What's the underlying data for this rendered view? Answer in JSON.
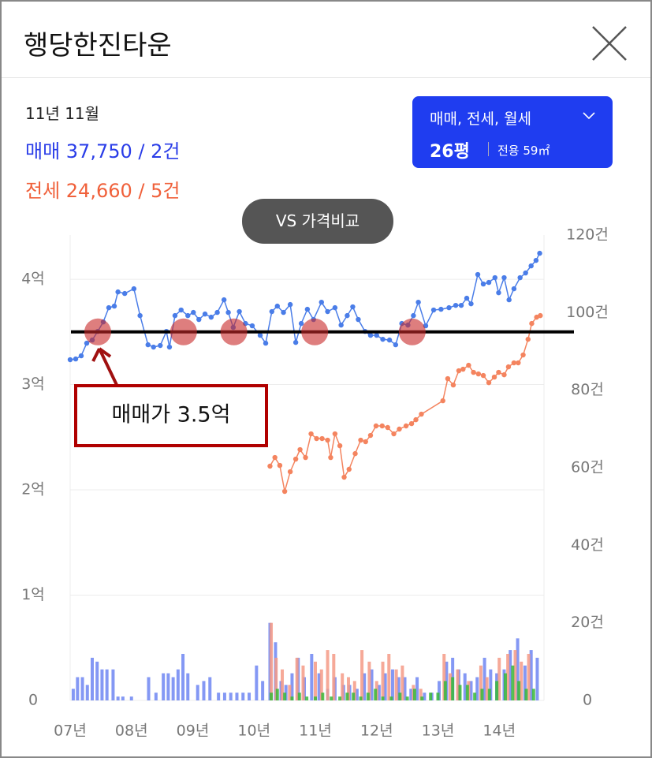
{
  "header": {
    "title": "행당한진타운"
  },
  "summary": {
    "date": "11년 11월",
    "sale": "매매 37,750 / 2건",
    "jeonse": "전세 24,660 / 5건"
  },
  "filter": {
    "types": "매매, 전세, 월세",
    "size": "26평",
    "area": "전용 59㎡"
  },
  "compare_button": "VS 가격비교",
  "chart_data": {
    "type": "combo",
    "grid": true,
    "xlim": [
      2007,
      2014.73
    ],
    "xticks": [
      {
        "value": 2007,
        "label": "07년"
      },
      {
        "value": 2008,
        "label": "08년"
      },
      {
        "value": 2009,
        "label": "09년"
      },
      {
        "value": 2010,
        "label": "10년"
      },
      {
        "value": 2011,
        "label": "11년"
      },
      {
        "value": 2012,
        "label": "12년"
      },
      {
        "value": 2013,
        "label": "13년"
      },
      {
        "value": 2014,
        "label": "14년"
      }
    ],
    "ylim": [
      0,
      44200
    ],
    "yticks": [
      0,
      {
        "value": 10000,
        "label": "1억"
      },
      {
        "value": 20000,
        "label": "2억"
      },
      {
        "value": 30000,
        "label": "3억"
      },
      {
        "value": 40000,
        "label": "4억"
      }
    ],
    "y2lim": [
      0,
      120
    ],
    "y2ticks": [
      0,
      {
        "value": 20,
        "label": "20건"
      },
      {
        "value": 40,
        "label": "40건"
      },
      {
        "value": 60,
        "label": "60건"
      },
      {
        "value": 80,
        "label": "80건"
      },
      {
        "value": 100,
        "label": "100건"
      },
      {
        "value": 120,
        "label": "120건"
      }
    ],
    "series": [
      {
        "type": "bar",
        "axis": "y2",
        "color": "#6f86f2",
        "x": [
          2007.05,
          2007.12,
          2007.2,
          2007.28,
          2007.36,
          2007.44,
          2007.52,
          2007.6,
          2007.7,
          2007.78,
          2007.86,
          2008.0,
          2008.28,
          2008.4,
          2008.52,
          2008.6,
          2008.68,
          2008.76,
          2008.84,
          2008.92,
          2009.08,
          2009.18,
          2009.28,
          2009.42,
          2009.52,
          2009.62,
          2009.72,
          2009.82,
          2009.92,
          2010.04,
          2010.14,
          2010.26,
          2010.35,
          2010.44,
          2010.52,
          2010.62,
          2010.72,
          2010.82,
          2010.94,
          2011.06,
          2011.2,
          2011.32,
          2011.46,
          2011.56,
          2011.68,
          2011.8,
          2011.92,
          2012.04,
          2012.14,
          2012.26,
          2012.36,
          2012.46,
          2012.56,
          2012.66,
          2012.78,
          2012.9,
          2013.02,
          2013.14,
          2013.24,
          2013.34,
          2013.44,
          2013.54,
          2013.64,
          2013.76,
          2013.86,
          2013.96,
          2014.08,
          2014.18,
          2014.3,
          2014.42,
          2014.52,
          2014.62
        ],
        "values": [
          3,
          6,
          6,
          4,
          11,
          10,
          8,
          8,
          8,
          1,
          1,
          1,
          6,
          2,
          7,
          7,
          6,
          8,
          12,
          7,
          4,
          5,
          6,
          2,
          2,
          2,
          2,
          2,
          2,
          9,
          5,
          20,
          15,
          5,
          4,
          7,
          11,
          6,
          12,
          7,
          3,
          6,
          4,
          4,
          3,
          7,
          8,
          4,
          7,
          8,
          6,
          6,
          3,
          6,
          2,
          2,
          5,
          10,
          11,
          8,
          7,
          5,
          6,
          11,
          8,
          7,
          8,
          13,
          16,
          9,
          13,
          11
        ]
      },
      {
        "type": "bar",
        "axis": "y2",
        "color": "#f59a86",
        "x": [
          2010.28,
          2010.36,
          2010.46,
          2010.58,
          2010.7,
          2010.8,
          2011.0,
          2011.1,
          2011.2,
          2011.3,
          2011.44,
          2011.54,
          2011.64,
          2011.76,
          2011.88,
          2012.0,
          2012.1,
          2012.2,
          2012.32,
          2012.42,
          2012.6,
          2012.72,
          2013.1,
          2013.2,
          2013.32,
          2013.5,
          2013.7,
          2013.8,
          2014.0,
          2014.14,
          2014.26,
          2014.36,
          2014.48
        ],
        "values": [
          20,
          11,
          8,
          4,
          11,
          9,
          10,
          8,
          13,
          12,
          7,
          6,
          5,
          13,
          10,
          5,
          10,
          12,
          8,
          9,
          4,
          3,
          12,
          7,
          8,
          5,
          9,
          6,
          11,
          12,
          13,
          10,
          12
        ]
      },
      {
        "type": "bar",
        "axis": "y2",
        "color": "#38b838",
        "x": [
          2010.28,
          2010.38,
          2010.5,
          2010.62,
          2010.74,
          2010.86,
          2011.0,
          2011.12,
          2011.26,
          2011.4,
          2011.52,
          2011.62,
          2011.74,
          2011.86,
          2011.98,
          2012.1,
          2012.24,
          2012.38,
          2012.5,
          2012.62,
          2012.74,
          2012.88,
          2013.0,
          2013.12,
          2013.24,
          2013.36,
          2013.48,
          2013.6,
          2013.72,
          2013.84,
          2013.96,
          2014.1,
          2014.22,
          2014.32,
          2014.44,
          2014.56
        ],
        "values": [
          2,
          3,
          2,
          1,
          2,
          1,
          1,
          2,
          1,
          1,
          2,
          2,
          1,
          2,
          3,
          1,
          1,
          2,
          1,
          3,
          1,
          2,
          2,
          5,
          6,
          4,
          4,
          2,
          3,
          3,
          5,
          7,
          9,
          5,
          3,
          3
        ]
      },
      {
        "type": "line",
        "color": "#4a7de8",
        "x": [
          2007.0,
          2007.09,
          2007.18,
          2007.27,
          2007.36,
          2007.45,
          2007.54,
          2007.63,
          2007.72,
          2007.78,
          2007.89,
          2008.04,
          2008.14,
          2008.27,
          2008.36,
          2008.47,
          2008.57,
          2008.62,
          2008.71,
          2008.81,
          2008.92,
          2009.01,
          2009.1,
          2009.2,
          2009.3,
          2009.4,
          2009.51,
          2009.58,
          2009.66,
          2009.76,
          2009.86,
          2009.97,
          2010.1,
          2010.19,
          2010.29,
          2010.38,
          2010.48,
          2010.59,
          2010.68,
          2010.77,
          2010.87,
          2010.97,
          2011.1,
          2011.2,
          2011.32,
          2011.42,
          2011.52,
          2011.61,
          2011.7,
          2011.81,
          2011.9,
          2012.0,
          2012.1,
          2012.21,
          2012.31,
          2012.41,
          2012.51,
          2012.6,
          2012.68,
          2012.8,
          2012.93,
          2013.05,
          2013.18,
          2013.29,
          2013.38,
          2013.47,
          2013.54,
          2013.65,
          2013.74,
          2013.83,
          2013.93,
          2013.99,
          2014.08,
          2014.16,
          2014.24,
          2014.34,
          2014.43,
          2014.52,
          2014.6,
          2014.66
        ],
        "values": [
          32360,
          32430,
          32730,
          33930,
          34230,
          35050,
          35950,
          37300,
          37450,
          38800,
          38650,
          39100,
          36550,
          33780,
          33560,
          33710,
          35050,
          33560,
          36550,
          37080,
          36550,
          36850,
          36180,
          36700,
          36400,
          36850,
          38050,
          36850,
          35430,
          36930,
          35800,
          35580,
          34680,
          33930,
          36930,
          37450,
          36850,
          37600,
          34000,
          35800,
          37150,
          36180,
          37820,
          36930,
          37300,
          35650,
          36550,
          37380,
          36180,
          35050,
          34680,
          34680,
          34300,
          34230,
          33780,
          35800,
          35650,
          36550,
          37820,
          35580,
          37080,
          37150,
          37300,
          37520,
          37520,
          38200,
          37670,
          40450,
          39550,
          39700,
          40150,
          38720,
          40150,
          38050,
          39100,
          40150,
          40600,
          41270,
          41790,
          42470
        ]
      },
      {
        "type": "line",
        "color": "#f4845f",
        "x": [
          2010.26,
          2010.34,
          2010.42,
          2010.5,
          2010.59,
          2010.68,
          2010.75,
          2010.84,
          2010.93,
          2011.02,
          2011.11,
          2011.2,
          2011.25,
          2011.32,
          2011.4,
          2011.47,
          2011.55,
          2011.65,
          2011.74,
          2011.82,
          2011.9,
          2011.99,
          2012.09,
          2012.18,
          2012.28,
          2012.37,
          2012.48,
          2012.57,
          2012.64,
          2012.73,
          2013.08,
          2013.16,
          2013.25,
          2013.34,
          2013.41,
          2013.5,
          2013.58,
          2013.66,
          2013.74,
          2013.83,
          2013.92,
          2013.99,
          2014.08,
          2014.15,
          2014.24,
          2014.31,
          2014.39,
          2014.47,
          2014.53,
          2014.61,
          2014.67
        ],
        "values": [
          22250,
          23070,
          22320,
          19850,
          21720,
          22920,
          23820,
          23070,
          25320,
          24870,
          24870,
          24720,
          23070,
          25320,
          24190,
          21200,
          21950,
          23440,
          24720,
          24570,
          25170,
          26070,
          26070,
          25920,
          25320,
          25770,
          26070,
          26290,
          26660,
          27190,
          28460,
          30560,
          29960,
          31310,
          31460,
          31830,
          31160,
          31010,
          30860,
          30180,
          30710,
          31160,
          30930,
          31680,
          32060,
          32060,
          32810,
          34300,
          35800,
          36400,
          36550
        ]
      }
    ],
    "reference_line": {
      "value": 35000,
      "label": "매매가 3.5억",
      "color": "#000000"
    },
    "highlight_points": {
      "x": [
        2007.45,
        2008.85,
        2009.67,
        2010.99,
        2012.58
      ],
      "color": "#c8282899"
    }
  }
}
